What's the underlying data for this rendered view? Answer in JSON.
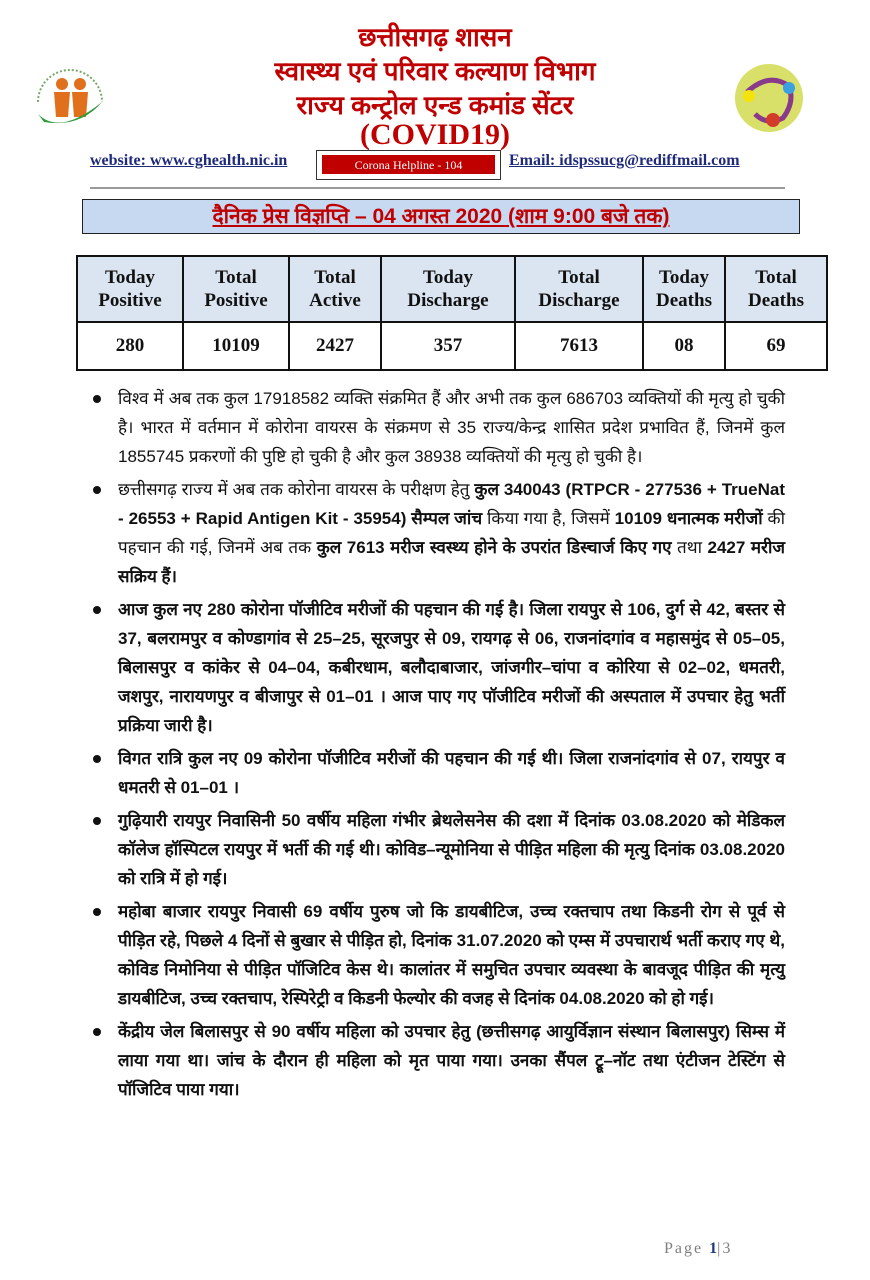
{
  "header": {
    "line1": "छत्तीसगढ़ शासन",
    "line2": "स्वास्थ्य एवं परिवार कल्याण विभाग",
    "line3": "राज्य कन्ट्रोल एन्ड कमांड सेंटर",
    "line4": "(COVID19)",
    "website": "website: www.cghealth.nic.in",
    "helpline": "Corona Helpline - 104",
    "email": "Email: idspssucg@rediffmail.com",
    "accent_color": "#c00000"
  },
  "title": "दैनिक प्रेस विज्ञप्ति – 04 अगस्त 2020 (शाम 9:00 बजे तक)",
  "table": {
    "headers": [
      [
        "Today",
        "Positive"
      ],
      [
        "Total",
        "Positive"
      ],
      [
        "Total",
        "Active"
      ],
      [
        "Today",
        "Discharge"
      ],
      [
        "Total",
        "Discharge"
      ],
      [
        "Today",
        "Deaths"
      ],
      [
        "Total",
        "Deaths"
      ]
    ],
    "values": [
      "280",
      "10109",
      "2427",
      "357",
      "7613",
      "08",
      "69"
    ]
  },
  "bullets": [
    {
      "bold": false,
      "segments": [
        {
          "text": "विश्व में अब तक कुल 17918582 व्यक्ति संक्रमित हैं और अभी तक कुल 686703 व्यक्तियों की मृत्यु हो चुकी है। भारत में वर्तमान में कोरोना वायरस के संक्रमण से 35 राज्य/केन्द्र शासित प्रदेश प्रभावित हैं, जिनमें कुल 1855745 प्रकरणों की पुष्टि हो चुकी है और कुल 38938 व्यक्तियों की मृत्यु हो चुकी है।",
          "b": false
        }
      ]
    },
    {
      "bold": false,
      "segments": [
        {
          "text": "छत्तीसगढ़ राज्य में अब तक कोरोना वायरस के परीक्षण हेतु ",
          "b": false
        },
        {
          "text": "कुल 340043 (RTPCR - 277536 + TrueNat - 26553 + Rapid Antigen Kit - 35954) सैम्पल जांच",
          "b": true
        },
        {
          "text": " किया गया है, जिसमें ",
          "b": false
        },
        {
          "text": "10109 धनात्मक मरीजों",
          "b": true
        },
        {
          "text": " की पहचान की गई, जिनमें अब तक ",
          "b": false
        },
        {
          "text": "कुल 7613 मरीज स्वस्थ्य होने के उपरांत डिस्चार्ज किए गए",
          "b": true
        },
        {
          "text": " तथा ",
          "b": false
        },
        {
          "text": "2427 मरीज सक्रिय हैं।",
          "b": true
        }
      ]
    },
    {
      "bold": true,
      "segments": [
        {
          "text": "आज कुल नए 280 कोरोना पॉजीटिव मरीजों की पहचान की गई है। जिला रायपुर से 106, दुर्ग से 42, बस्तर से 37, बलरामपुर व कोण्डागांव से 25–25, सूरजपुर से 09, रायगढ़ से 06, राजनांदगांव व महासमुंद से 05–05, बिलासपुर व कांकेर से 04–04, कबीरधाम, बलौदाबाजार, जांजगीर–चांपा व कोरिया से 02–02, धमतरी, जशपुर, नारायणपुर व बीजापुर से 01–01 । आज पाए गए पॉजीटिव मरीजों की अस्पताल में उपचार हेतु भर्ती प्रक्रिया जारी है।",
          "b": true
        }
      ]
    },
    {
      "bold": true,
      "segments": [
        {
          "text": "विगत रात्रि कुल नए 09 कोरोना पॉजीटिव मरीजों की पहचान की गई थी। जिला राजनांदगांव से 07, रायपुर व धमतरी से 01–01 ।",
          "b": true
        }
      ]
    },
    {
      "bold": true,
      "segments": [
        {
          "text": "गुढ़ियारी रायपुर निवासिनी 50 वर्षीय महिला गंभीर ब्रेथलेसनेस की दशा में दिनांक 03.08.2020 को मेडिकल कॉलेज हॉस्पिटल रायपुर में भर्ती की गई थी। कोविड–न्यूमोनिया से पीड़ित महिला की मृत्यु दिनांक 03.08.2020 को रात्रि में हो गई।",
          "b": true
        }
      ]
    },
    {
      "bold": true,
      "segments": [
        {
          "text": "महोबा बाजार रायपुर निवासी 69 वर्षीय पुरुष जो कि डायबीटिज, उच्च रक्तचाप तथा किडनी रोग से पूर्व से पीड़ित रहे, पिछले 4 दिनों से बुखार से पीड़ित हो, दिनांक 31.07.2020 को एम्स में उपचारार्थ भर्ती कराए गए थे, कोविड निमोनिया से पीड़ित पॉजिटिव केस थे। कालांतर में समुचित उपचार व्यवस्था के बावजूद पीड़ित की मृत्यु डायबीटिज, उच्च रक्तचाप, रेस्पिरेट्री व किडनी फेल्योर की वजह से दिनांक 04.08.2020 को हो गई।",
          "b": true
        }
      ]
    },
    {
      "bold": true,
      "segments": [
        {
          "text": "केंद्रीय जेल बिलासपुर से 90 वर्षीय महिला को उपचार हेतु (छत्तीसगढ़ आयुर्विज्ञान संस्थान बिलासपुर) सिम्स में लाया गया था। जांच के दौरान ही महिला को मृत पाया गया। उनका सैंपल ट्रू–नॉट तथा एंटीजन टेस्टिंग से पॉजिटिव पाया गया।",
          "b": true
        }
      ]
    }
  ],
  "footer": {
    "label": "Page",
    "page": "1",
    "sep": "|",
    "total": "3"
  }
}
